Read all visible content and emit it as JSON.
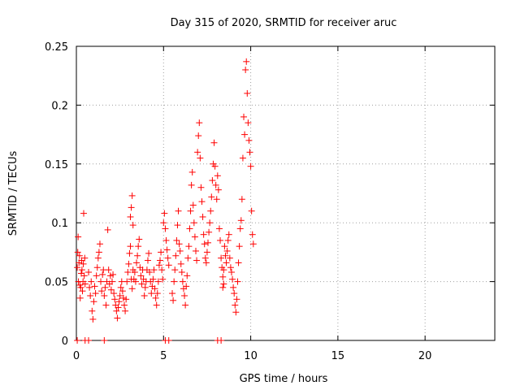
{
  "chart_data": {
    "type": "scatter",
    "title": "Day 315 of 2020, SRMTID for receiver aruc",
    "xlabel": "GPS time / hours",
    "ylabel": "SRMTID / TECUs",
    "xlim": [
      0,
      24
    ],
    "ylim": [
      0,
      0.25
    ],
    "xticks": [
      0,
      5,
      10,
      15,
      20
    ],
    "xtick_labels": [
      "0",
      "5",
      "10",
      "15",
      "20"
    ],
    "yticks": [
      0,
      0.05,
      0.1,
      0.15,
      0.2,
      0.25
    ],
    "ytick_labels": [
      "0",
      "0.05",
      "0.1",
      "0.15",
      "0.2",
      "0.25"
    ],
    "grid": true,
    "marker": "+",
    "color": "#ff0000",
    "series": [
      {
        "name": "SRMTID",
        "points": [
          [
            0.05,
            0.062
          ],
          [
            0.08,
            0.075
          ],
          [
            0.1,
            0.088
          ],
          [
            0.12,
            0.05
          ],
          [
            0.15,
            0.066
          ],
          [
            0.18,
            0.072
          ],
          [
            0.2,
            0.047
          ],
          [
            0.22,
            0.036
          ],
          [
            0.25,
            0.045
          ],
          [
            0.28,
            0.057
          ],
          [
            0.3,
            0.068
          ],
          [
            0.32,
            0.06
          ],
          [
            0.35,
            0.042
          ],
          [
            0.38,
            0.05
          ],
          [
            0.4,
            0.065
          ],
          [
            0.42,
            0.108
          ],
          [
            0.45,
            0.055
          ],
          [
            0.48,
            0.07
          ],
          [
            0.5,
            0.048
          ],
          [
            0.7,
            0.058
          ],
          [
            0.75,
            0.045
          ],
          [
            0.8,
            0.038
          ],
          [
            0.85,
            0.05
          ],
          [
            0.9,
            0.025
          ],
          [
            0.95,
            0.018
          ],
          [
            1.0,
            0.033
          ],
          [
            1.05,
            0.046
          ],
          [
            1.1,
            0.04
          ],
          [
            1.15,
            0.055
          ],
          [
            1.2,
            0.062
          ],
          [
            1.25,
            0.07
          ],
          [
            1.3,
            0.075
          ],
          [
            1.35,
            0.082
          ],
          [
            1.4,
            0.05
          ],
          [
            1.45,
            0.042
          ],
          [
            1.5,
            0.056
          ],
          [
            1.55,
            0.06
          ],
          [
            1.6,
            0.038
          ],
          [
            1.65,
            0.045
          ],
          [
            1.7,
            0.03
          ],
          [
            1.75,
            0.05
          ],
          [
            1.8,
            0.094
          ],
          [
            1.85,
            0.06
          ],
          [
            1.9,
            0.048
          ],
          [
            1.95,
            0.055
          ],
          [
            2.0,
            0.043
          ],
          [
            2.05,
            0.05
          ],
          [
            2.1,
            0.056
          ],
          [
            2.15,
            0.04
          ],
          [
            2.2,
            0.035
          ],
          [
            2.25,
            0.03
          ],
          [
            2.3,
            0.025
          ],
          [
            2.35,
            0.019
          ],
          [
            2.4,
            0.028
          ],
          [
            2.45,
            0.033
          ],
          [
            2.5,
            0.038
          ],
          [
            2.55,
            0.045
          ],
          [
            2.6,
            0.05
          ],
          [
            2.65,
            0.042
          ],
          [
            2.7,
            0.036
          ],
          [
            2.75,
            0.03
          ],
          [
            2.8,
            0.025
          ],
          [
            2.85,
            0.035
          ],
          [
            2.9,
            0.05
          ],
          [
            2.95,
            0.058
          ],
          [
            3.0,
            0.065
          ],
          [
            3.05,
            0.074
          ],
          [
            3.1,
            0.08
          ],
          [
            3.15,
            0.052
          ],
          [
            3.2,
            0.044
          ],
          [
            3.25,
            0.06
          ],
          [
            3.3,
            0.052
          ],
          [
            3.35,
            0.058
          ],
          [
            3.4,
            0.05
          ],
          [
            3.45,
            0.066
          ],
          [
            3.5,
            0.072
          ],
          [
            3.55,
            0.08
          ],
          [
            3.6,
            0.086
          ],
          [
            3.65,
            0.062
          ],
          [
            3.1,
            0.105
          ],
          [
            3.15,
            0.113
          ],
          [
            3.2,
            0.123
          ],
          [
            3.25,
            0.098
          ],
          [
            3.7,
            0.055
          ],
          [
            3.75,
            0.048
          ],
          [
            3.8,
            0.06
          ],
          [
            3.85,
            0.052
          ],
          [
            3.9,
            0.038
          ],
          [
            3.95,
            0.045
          ],
          [
            4.0,
            0.05
          ],
          [
            4.05,
            0.06
          ],
          [
            4.1,
            0.068
          ],
          [
            4.15,
            0.074
          ],
          [
            4.2,
            0.058
          ],
          [
            4.25,
            0.05
          ],
          [
            4.3,
            0.04
          ],
          [
            4.35,
            0.046
          ],
          [
            4.4,
            0.052
          ],
          [
            4.45,
            0.06
          ],
          [
            4.5,
            0.044
          ],
          [
            4.55,
            0.036
          ],
          [
            4.6,
            0.03
          ],
          [
            4.65,
            0.04
          ],
          [
            4.7,
            0.05
          ],
          [
            4.75,
            0.064
          ],
          [
            4.8,
            0.068
          ],
          [
            4.85,
            0.075
          ],
          [
            4.9,
            0.06
          ],
          [
            4.95,
            0.052
          ],
          [
            5.0,
            0.1
          ],
          [
            5.05,
            0.108
          ],
          [
            5.1,
            0.095
          ],
          [
            5.15,
            0.085
          ],
          [
            5.2,
            0.077
          ],
          [
            5.25,
            0.07
          ],
          [
            5.3,
            0.064
          ],
          [
            5.5,
            0.04
          ],
          [
            5.55,
            0.034
          ],
          [
            5.6,
            0.05
          ],
          [
            5.65,
            0.06
          ],
          [
            5.7,
            0.072
          ],
          [
            5.75,
            0.085
          ],
          [
            5.8,
            0.098
          ],
          [
            5.85,
            0.11
          ],
          [
            5.9,
            0.082
          ],
          [
            5.95,
            0.076
          ],
          [
            6.0,
            0.065
          ],
          [
            6.05,
            0.058
          ],
          [
            6.1,
            0.05
          ],
          [
            6.15,
            0.044
          ],
          [
            6.2,
            0.038
          ],
          [
            6.25,
            0.03
          ],
          [
            6.3,
            0.046
          ],
          [
            6.35,
            0.055
          ],
          [
            6.4,
            0.07
          ],
          [
            6.45,
            0.08
          ],
          [
            6.5,
            0.095
          ],
          [
            6.55,
            0.11
          ],
          [
            6.6,
            0.132
          ],
          [
            6.65,
            0.143
          ],
          [
            6.7,
            0.115
          ],
          [
            6.75,
            0.1
          ],
          [
            6.8,
            0.088
          ],
          [
            6.85,
            0.076
          ],
          [
            6.9,
            0.068
          ],
          [
            6.95,
            0.16
          ],
          [
            7.0,
            0.174
          ],
          [
            7.05,
            0.185
          ],
          [
            7.1,
            0.155
          ],
          [
            7.15,
            0.13
          ],
          [
            7.2,
            0.118
          ],
          [
            7.25,
            0.105
          ],
          [
            7.3,
            0.09
          ],
          [
            7.35,
            0.082
          ],
          [
            7.4,
            0.07
          ],
          [
            7.45,
            0.066
          ],
          [
            7.5,
            0.075
          ],
          [
            7.55,
            0.083
          ],
          [
            7.6,
            0.092
          ],
          [
            7.65,
            0.1
          ],
          [
            7.7,
            0.11
          ],
          [
            7.75,
            0.122
          ],
          [
            7.8,
            0.136
          ],
          [
            7.85,
            0.15
          ],
          [
            7.9,
            0.168
          ],
          [
            7.95,
            0.148
          ],
          [
            8.0,
            0.132
          ],
          [
            8.05,
            0.12
          ],
          [
            8.1,
            0.14
          ],
          [
            8.15,
            0.128
          ],
          [
            8.2,
            0.095
          ],
          [
            8.25,
            0.085
          ],
          [
            8.3,
            0.07
          ],
          [
            8.35,
            0.062
          ],
          [
            8.4,
            0.054
          ],
          [
            8.45,
            0.048
          ],
          [
            8.4,
            0.045
          ],
          [
            8.45,
            0.06
          ],
          [
            8.5,
            0.08
          ],
          [
            8.55,
            0.072
          ],
          [
            8.6,
            0.066
          ],
          [
            8.65,
            0.076
          ],
          [
            8.7,
            0.085
          ],
          [
            8.75,
            0.09
          ],
          [
            8.8,
            0.07
          ],
          [
            8.85,
            0.062
          ],
          [
            8.9,
            0.058
          ],
          [
            8.95,
            0.052
          ],
          [
            9.0,
            0.045
          ],
          [
            9.05,
            0.04
          ],
          [
            9.1,
            0.03
          ],
          [
            9.15,
            0.024
          ],
          [
            9.2,
            0.035
          ],
          [
            9.25,
            0.05
          ],
          [
            9.3,
            0.066
          ],
          [
            9.35,
            0.08
          ],
          [
            9.4,
            0.095
          ],
          [
            9.45,
            0.102
          ],
          [
            9.5,
            0.12
          ],
          [
            9.55,
            0.155
          ],
          [
            9.6,
            0.19
          ],
          [
            9.65,
            0.175
          ],
          [
            9.7,
            0.23
          ],
          [
            9.75,
            0.237
          ],
          [
            9.8,
            0.21
          ],
          [
            9.85,
            0.185
          ],
          [
            9.9,
            0.17
          ],
          [
            9.95,
            0.16
          ],
          [
            10.0,
            0.148
          ],
          [
            10.05,
            0.11
          ],
          [
            10.1,
            0.09
          ],
          [
            10.15,
            0.082
          ],
          [
            0.05,
            0.0
          ],
          [
            0.5,
            0.0
          ],
          [
            0.7,
            0.0
          ],
          [
            1.6,
            0.0
          ],
          [
            5.1,
            0.0
          ],
          [
            5.3,
            0.0
          ],
          [
            8.1,
            0.0
          ],
          [
            8.3,
            0.0
          ]
        ]
      }
    ]
  }
}
